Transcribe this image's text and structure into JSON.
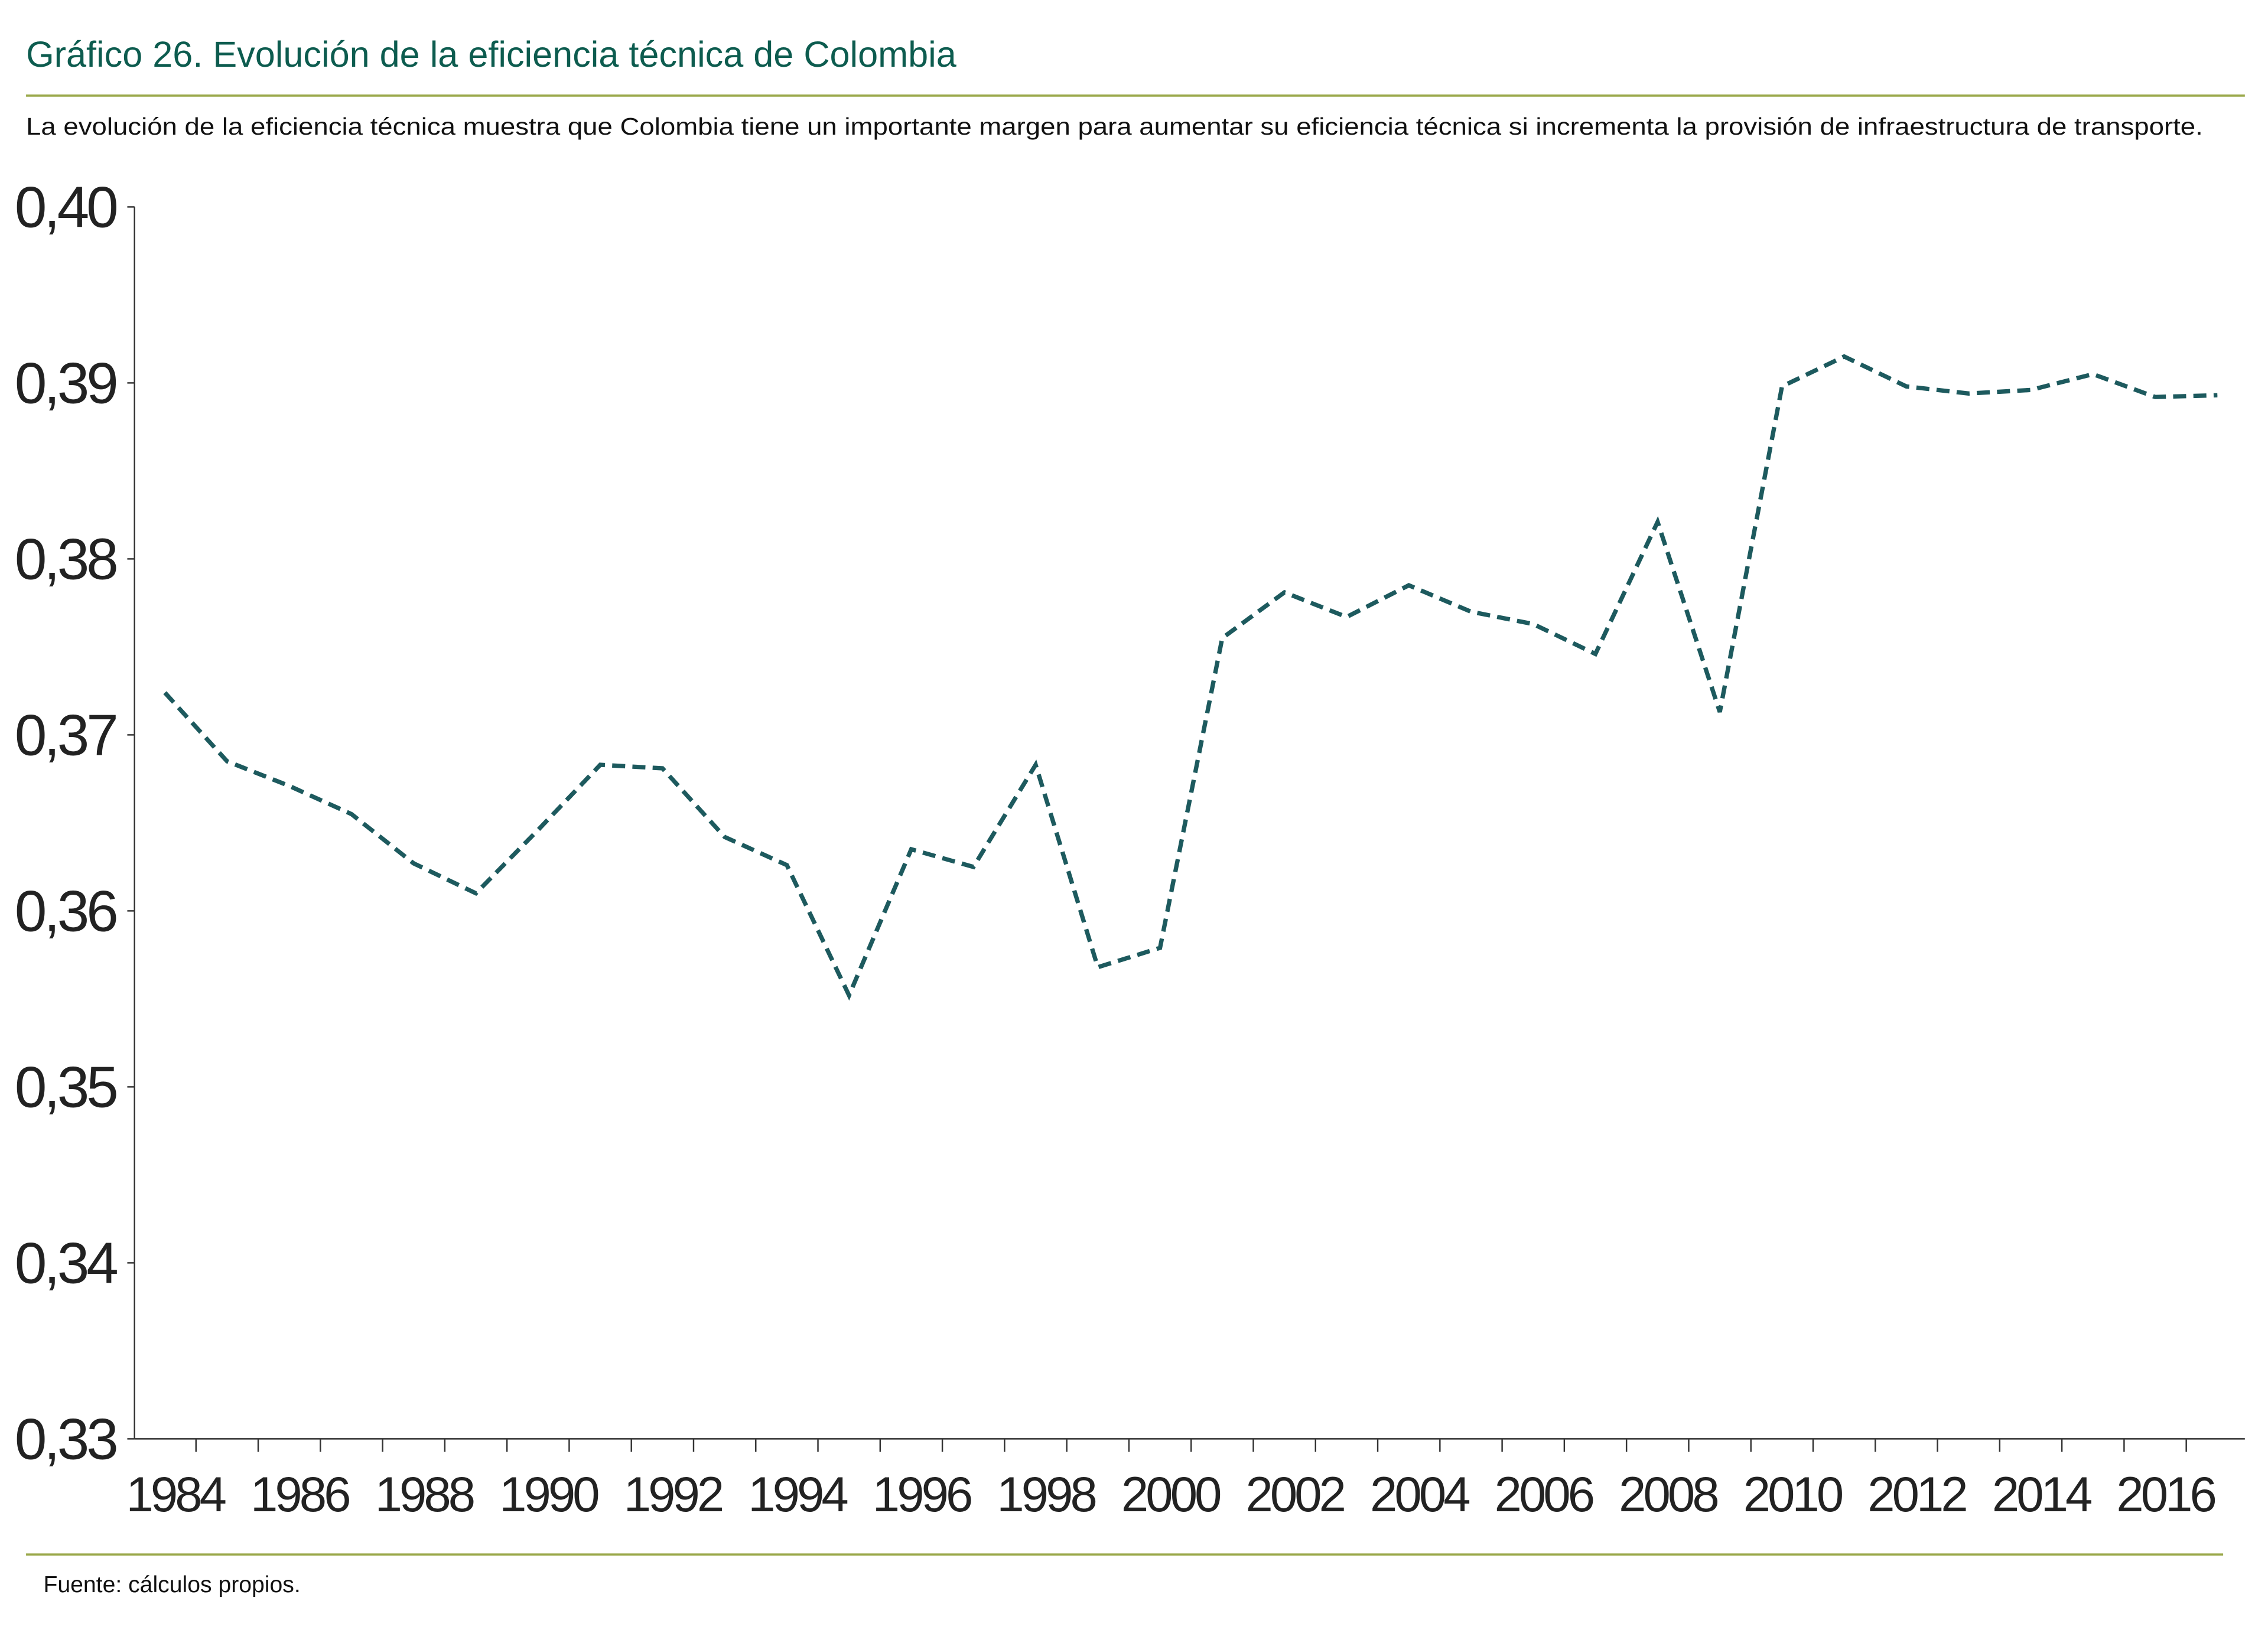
{
  "header": {
    "title": "Gráfico 26. Evolución de la eficiencia técnica de Colombia",
    "subtitle": "La evolución de la eficiencia técnica muestra que Colombia tiene un importante margen para aumentar su eficiencia técnica si incrementa la provisión de infraestructura de transporte."
  },
  "footer": {
    "source": "Fuente: cálculos propios."
  },
  "colors": {
    "title": "#0d5c4f",
    "rule": "#9aa84a",
    "series": "#1d5a5e"
  },
  "chart_data": {
    "type": "line",
    "title": "Gráfico 26. Evolución de la eficiencia técnica de Colombia",
    "xlabel": "",
    "ylabel": "",
    "ylim": [
      0.33,
      0.4
    ],
    "yticks": [
      "0,33",
      "0,34",
      "0,35",
      "0,36",
      "0,37",
      "0,38",
      "0,39",
      "0,40"
    ],
    "xtick_labels": [
      "1984",
      "1986",
      "1988",
      "1990",
      "1992",
      "1994",
      "1996",
      "1998",
      "2000",
      "2002",
      "2004",
      "2006",
      "2008",
      "2010",
      "2012",
      "2014",
      "2016"
    ],
    "grid": false,
    "legend": "none",
    "x": [
      1984,
      1985,
      1986,
      1987,
      1988,
      1989,
      1990,
      1991,
      1992,
      1993,
      1994,
      1995,
      1996,
      1997,
      1998,
      1999,
      2000,
      2001,
      2002,
      2003,
      2004,
      2005,
      2006,
      2007,
      2008,
      2009,
      2010,
      2011,
      2012,
      2013,
      2014,
      2015,
      2016,
      2017
    ],
    "series": [
      {
        "name": "Eficiencia técnica",
        "style": "dashed",
        "values": [
          0.3724,
          0.3685,
          0.3671,
          0.3655,
          0.3627,
          0.361,
          0.3646,
          0.3683,
          0.3681,
          0.3642,
          0.3626,
          0.3552,
          0.3635,
          0.3625,
          0.3683,
          0.3568,
          0.3579,
          0.3755,
          0.3781,
          0.3767,
          0.3785,
          0.377,
          0.3763,
          0.3746,
          0.3821,
          0.3713,
          0.3898,
          0.3915,
          0.3898,
          0.3894,
          0.3896,
          0.3905,
          0.3892,
          0.3893
        ]
      }
    ]
  }
}
